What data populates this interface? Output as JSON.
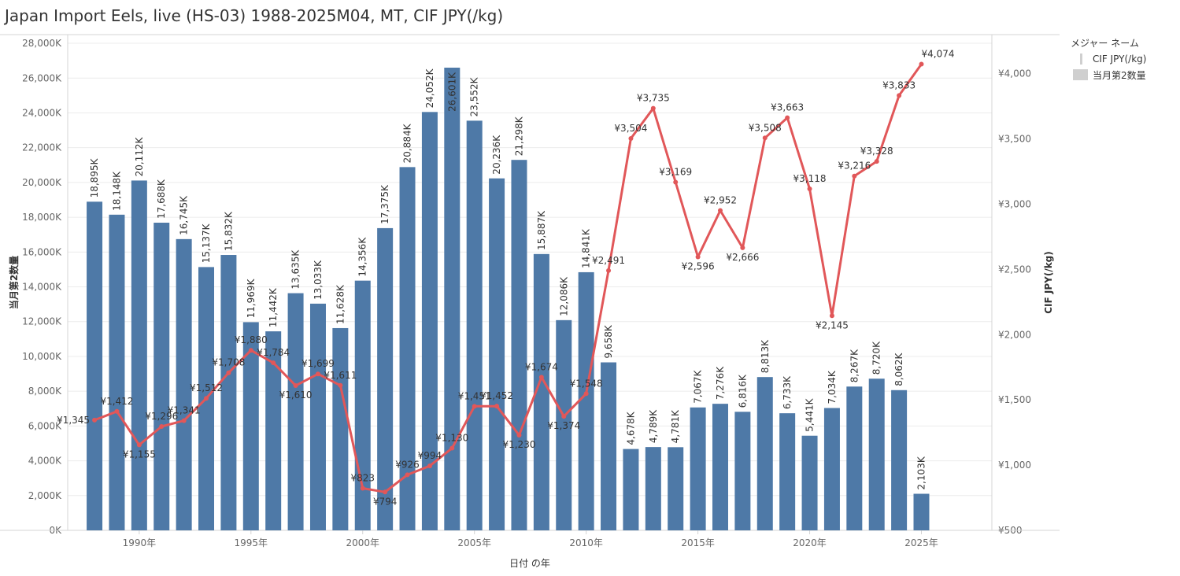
{
  "title": "Japan Import Eels, live (HS-03) 1988-2025M04, MT, CIF JPY(/kg)",
  "legend": {
    "title": "メジャー ネーム",
    "items": [
      {
        "label": "CIF JPY(/kg)",
        "kind": "line"
      },
      {
        "label": "当月第2数量",
        "kind": "bar"
      }
    ]
  },
  "chart_data": {
    "type": "bar+line",
    "xlabel": "日付 の年",
    "ylabel_left": "当月第2数量",
    "ylabel_right": "CIF JPY(/kg)",
    "ylim_left": [
      0,
      28500
    ],
    "ylim_right": [
      500,
      4300
    ],
    "left_ticks": [
      0,
      2000,
      4000,
      6000,
      8000,
      10000,
      12000,
      14000,
      16000,
      18000,
      20000,
      22000,
      24000,
      26000,
      28000
    ],
    "left_tick_labels": [
      "0K",
      "2,000K",
      "4,000K",
      "6,000K",
      "8,000K",
      "10,000K",
      "12,000K",
      "14,000K",
      "16,000K",
      "18,000K",
      "20,000K",
      "22,000K",
      "24,000K",
      "26,000K",
      "28,000K"
    ],
    "right_ticks": [
      500,
      1000,
      1500,
      2000,
      2500,
      3000,
      3500,
      4000
    ],
    "right_tick_labels": [
      "¥500",
      "¥1,000",
      "¥1,500",
      "¥2,000",
      "¥2,500",
      "¥3,000",
      "¥3,500",
      "¥4,000"
    ],
    "x_ticks": [
      1990,
      1995,
      2000,
      2005,
      2010,
      2015,
      2020,
      2025
    ],
    "x_tick_labels": [
      "1990年",
      "1995年",
      "2000年",
      "2005年",
      "2010年",
      "2015年",
      "2020年",
      "2025年"
    ],
    "grid": true,
    "legend_position": "right",
    "years": [
      1988,
      1989,
      1990,
      1991,
      1992,
      1993,
      1994,
      1995,
      1996,
      1997,
      1998,
      1999,
      2000,
      2001,
      2002,
      2003,
      2004,
      2005,
      2006,
      2007,
      2008,
      2009,
      2010,
      2011,
      2012,
      2013,
      2014,
      2015,
      2016,
      2017,
      2018,
      2019,
      2020,
      2021,
      2022,
      2023,
      2024,
      2025
    ],
    "series": [
      {
        "name": "当月第2数量",
        "kind": "bar",
        "color": "#4e79a7",
        "values": [
          18895,
          18148,
          20112,
          17688,
          16745,
          15137,
          15832,
          11969,
          11442,
          13635,
          13033,
          11628,
          14356,
          17375,
          20884,
          24052,
          26601,
          23552,
          20236,
          21298,
          15887,
          12086,
          14841,
          9658,
          4678,
          4789,
          4781,
          7067,
          7276,
          6816,
          8813,
          6733,
          5441,
          7034,
          8267,
          8720,
          8062,
          2103
        ],
        "labels": [
          "18,895K",
          "18,148K",
          "20,112K",
          "17,688K",
          "16,745K",
          "15,137K",
          "15,832K",
          "11,969K",
          "11,442K",
          "13,635K",
          "13,033K",
          "11,628K",
          "14,356K",
          "17,375K",
          "20,884K",
          "24,052K",
          "26,601K",
          "23,552K",
          "20,236K",
          "21,298K",
          "15,887K",
          "12,086K",
          "14,841K",
          "9,658K",
          "4,678K",
          "4,789K",
          "4,781K",
          "7,067K",
          "7,276K",
          "6,816K",
          "8,813K",
          "6,733K",
          "5,441K",
          "7,034K",
          "8,267K",
          "8,720K",
          "8,062K",
          "2,103K"
        ]
      },
      {
        "name": "CIF JPY(/kg)",
        "kind": "line",
        "color": "#e15759",
        "values": [
          1345,
          1412,
          1155,
          1296,
          1341,
          1512,
          1708,
          1880,
          1784,
          1610,
          1699,
          1611,
          823,
          794,
          926,
          994,
          1130,
          1451,
          1452,
          1230,
          1674,
          1374,
          1548,
          2491,
          3504,
          3735,
          3169,
          2596,
          2952,
          2666,
          3508,
          3663,
          3118,
          2145,
          3216,
          3328,
          3833,
          4074
        ],
        "labels": [
          "¥1,345",
          "¥1,412",
          "¥1,155",
          "¥1,296",
          "¥1,341",
          "¥1,512",
          "¥1,708",
          "¥1,880",
          "¥1,784",
          "¥1,610",
          "¥1,699",
          "¥1,611",
          "¥823",
          "¥794",
          "¥926",
          "¥994",
          "¥1,130",
          "¥1,451",
          "¥1,452",
          "¥1,230",
          "¥1,674",
          "¥1,374",
          "¥1,548",
          "¥2,491",
          "¥3,504",
          "¥3,735",
          "¥3,169",
          "¥2,596",
          "¥2,952",
          "¥2,666",
          "¥3,508",
          "¥3,663",
          "¥3,118",
          "¥2,145",
          "¥3,216",
          "¥3,328",
          "¥3,833",
          "¥4,074"
        ]
      }
    ]
  }
}
